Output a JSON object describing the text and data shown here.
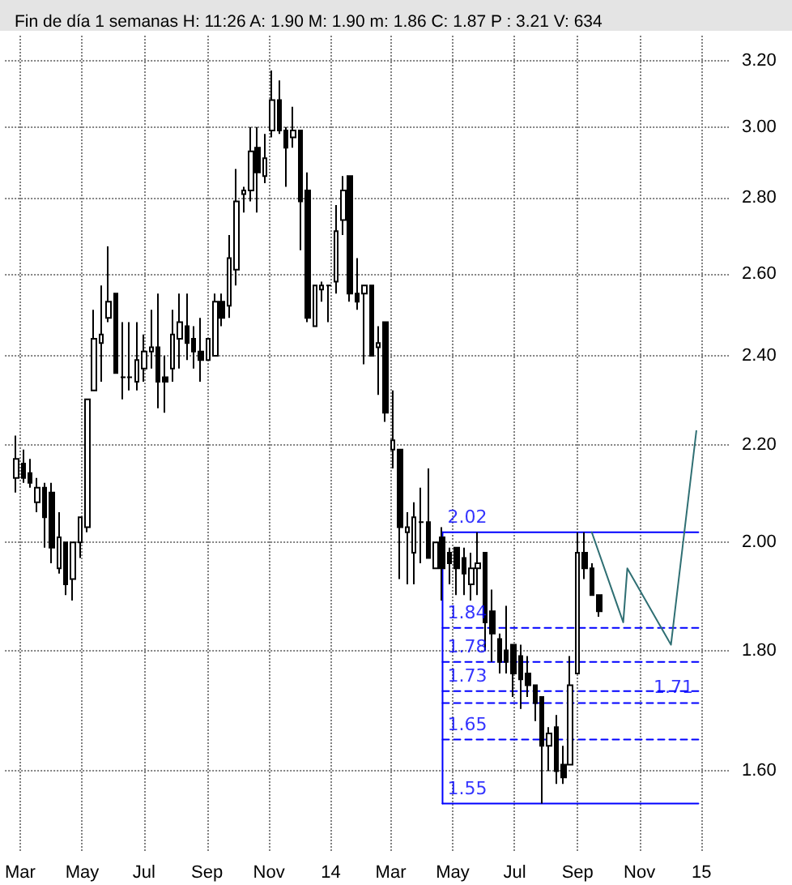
{
  "chart_data": {
    "type": "candlestick",
    "title": "Fin de día 1 semanas H: 11:26 A: 1.90 M: 1.90 m: 1.86 C: 1.87 P : 3.21 V: 634",
    "color": "#000000",
    "x": [
      "2013-02-25",
      "2013-03-04",
      "2013-03-11",
      "2013-03-18",
      "2013-03-25",
      "2013-04-01",
      "2013-04-08",
      "2013-04-15",
      "2013-04-22",
      "2013-04-29",
      "2013-05-06",
      "2013-05-13",
      "2013-05-20",
      "2013-05-27",
      "2013-06-03",
      "2013-06-10",
      "2013-06-17",
      "2013-06-24",
      "2013-07-01",
      "2013-07-08",
      "2013-07-15",
      "2013-07-22",
      "2013-07-29",
      "2013-08-05",
      "2013-08-12",
      "2013-08-19",
      "2013-08-26",
      "2013-09-02",
      "2013-09-09",
      "2013-09-16",
      "2013-09-23",
      "2013-09-30",
      "2013-10-07",
      "2013-10-14",
      "2013-10-21",
      "2013-10-28",
      "2013-11-04",
      "2013-11-11",
      "2013-11-18",
      "2013-11-25",
      "2013-12-02",
      "2013-12-09",
      "2013-12-16",
      "2013-12-23",
      "2013-12-30",
      "2014-01-06",
      "2014-01-13",
      "2014-01-20",
      "2014-01-27",
      "2014-02-03",
      "2014-02-10",
      "2014-02-17",
      "2014-02-24",
      "2014-03-03",
      "2014-03-10",
      "2014-03-17",
      "2014-03-24",
      "2014-03-31",
      "2014-04-07",
      "2014-04-14",
      "2014-04-21",
      "2014-04-28",
      "2014-05-05",
      "2014-05-12",
      "2014-05-19",
      "2014-05-26",
      "2014-06-02",
      "2014-06-09",
      "2014-06-16",
      "2014-06-23",
      "2014-06-30",
      "2014-07-07",
      "2014-07-14",
      "2014-07-21",
      "2014-07-28",
      "2014-08-04",
      "2014-08-11",
      "2014-08-18",
      "2014-08-25",
      "2014-09-01",
      "2014-09-08",
      "2014-09-15",
      "2014-09-22"
    ],
    "ohlc": [
      [
        2.13,
        2.22,
        2.1,
        2.17
      ],
      [
        2.16,
        2.19,
        2.12,
        2.13
      ],
      [
        2.14,
        2.17,
        2.11,
        2.12
      ],
      [
        2.08,
        2.13,
        2.06,
        2.11
      ],
      [
        2.11,
        2.12,
        1.99,
        2.05
      ],
      [
        2.1,
        2.12,
        1.96,
        1.99
      ],
      [
        1.95,
        2.06,
        1.94,
        2.01
      ],
      [
        2.0,
        2.0,
        1.9,
        1.92
      ],
      [
        1.93,
        2.0,
        1.89,
        2.0
      ],
      [
        2.0,
        2.05,
        1.97,
        2.05
      ],
      [
        2.03,
        2.3,
        2.02,
        2.3
      ],
      [
        2.32,
        2.51,
        2.32,
        2.44
      ],
      [
        2.43,
        2.57,
        2.34,
        2.45
      ],
      [
        2.49,
        2.67,
        2.48,
        2.53
      ],
      [
        2.55,
        2.55,
        2.36,
        2.36
      ],
      [
        2.35,
        2.48,
        2.3,
        2.35
      ],
      [
        2.35,
        2.48,
        2.32,
        2.35
      ],
      [
        2.34,
        2.48,
        2.32,
        2.39
      ],
      [
        2.37,
        2.45,
        2.34,
        2.41
      ],
      [
        2.41,
        2.51,
        2.37,
        2.42
      ],
      [
        2.42,
        2.55,
        2.28,
        2.34
      ],
      [
        2.35,
        2.4,
        2.27,
        2.34
      ],
      [
        2.37,
        2.51,
        2.34,
        2.45
      ],
      [
        2.44,
        2.55,
        2.37,
        2.48
      ],
      [
        2.47,
        2.55,
        2.39,
        2.43
      ],
      [
        2.44,
        2.47,
        2.37,
        2.41
      ],
      [
        2.41,
        2.49,
        2.34,
        2.39
      ],
      [
        2.39,
        2.44,
        2.39,
        2.44
      ],
      [
        2.4,
        2.55,
        2.4,
        2.53
      ],
      [
        2.53,
        2.55,
        2.47,
        2.49
      ],
      [
        2.52,
        2.7,
        2.49,
        2.64
      ],
      [
        2.61,
        2.88,
        2.57,
        2.79
      ],
      [
        2.81,
        2.83,
        2.76,
        2.82
      ],
      [
        2.82,
        3.0,
        2.79,
        2.93
      ],
      [
        2.94,
        3.0,
        2.76,
        2.87
      ],
      [
        2.86,
        2.98,
        2.84,
        2.91
      ],
      [
        2.99,
        3.17,
        2.97,
        3.08
      ],
      [
        3.08,
        3.14,
        2.98,
        2.99
      ],
      [
        2.99,
        3.0,
        2.83,
        2.94
      ],
      [
        2.97,
        3.06,
        2.94,
        2.99
      ],
      [
        2.99,
        2.99,
        2.66,
        2.79
      ],
      [
        2.82,
        2.87,
        2.48,
        2.49
      ],
      [
        2.47,
        2.57,
        2.47,
        2.57
      ],
      [
        2.56,
        2.58,
        2.53,
        2.57
      ],
      [
        2.57,
        2.57,
        2.48,
        2.57
      ],
      [
        2.58,
        2.78,
        2.55,
        2.71
      ],
      [
        2.74,
        2.86,
        2.7,
        2.82
      ],
      [
        2.86,
        2.86,
        2.53,
        2.55
      ],
      [
        2.55,
        2.64,
        2.51,
        2.53
      ],
      [
        2.55,
        2.57,
        2.38,
        2.57
      ],
      [
        2.57,
        2.57,
        2.4,
        2.4
      ],
      [
        2.42,
        2.47,
        2.31,
        2.43
      ],
      [
        2.48,
        2.48,
        2.25,
        2.27
      ],
      [
        2.19,
        2.32,
        2.15,
        2.21
      ],
      [
        2.19,
        2.19,
        1.93,
        2.03
      ],
      [
        2.02,
        2.06,
        1.92,
        2.03
      ],
      [
        1.98,
        2.08,
        1.92,
        2.05
      ],
      [
        2.04,
        2.11,
        1.96,
        2.04
      ],
      [
        2.04,
        2.15,
        1.97,
        1.97
      ],
      [
        1.95,
        2.0,
        1.95,
        2.0
      ],
      [
        2.01,
        2.03,
        1.89,
        1.95
      ],
      [
        1.98,
        1.99,
        1.92,
        1.96
      ],
      [
        1.99,
        1.99,
        1.9,
        1.95
      ],
      [
        1.97,
        1.99,
        1.9,
        1.94
      ],
      [
        1.92,
        1.98,
        1.89,
        1.95
      ],
      [
        1.95,
        2.02,
        1.9,
        1.96
      ],
      [
        1.98,
        1.98,
        1.8,
        1.85
      ],
      [
        1.87,
        1.91,
        1.78,
        1.83
      ],
      [
        1.82,
        1.83,
        1.76,
        1.78
      ],
      [
        1.8,
        1.88,
        1.76,
        1.78
      ],
      [
        1.81,
        1.81,
        1.72,
        1.76
      ],
      [
        1.79,
        1.81,
        1.7,
        1.75
      ],
      [
        1.76,
        1.79,
        1.72,
        1.74
      ],
      [
        1.74,
        1.74,
        1.68,
        1.71
      ],
      [
        1.72,
        1.72,
        1.55,
        1.64
      ],
      [
        1.64,
        1.67,
        1.6,
        1.66
      ],
      [
        1.67,
        1.69,
        1.58,
        1.6
      ],
      [
        1.61,
        1.64,
        1.58,
        1.59
      ],
      [
        1.61,
        1.79,
        1.61,
        1.74
      ],
      [
        1.76,
        2.02,
        1.76,
        1.98
      ],
      [
        1.98,
        2.02,
        1.93,
        1.95
      ],
      [
        1.95,
        1.96,
        1.9,
        1.9
      ],
      [
        1.9,
        1.9,
        1.86,
        1.87
      ]
    ],
    "series": [
      {
        "type": "line",
        "color": "#0000ff",
        "line_style": "solid",
        "x": [
          "2014-04-21",
          "2014-12-29"
        ],
        "values": [
          2.02,
          2.02
        ]
      },
      {
        "type": "line",
        "color": "#0000ff",
        "line_style": "dashed",
        "x": [
          "2014-04-21",
          "2014-12-29"
        ],
        "values": [
          1.84,
          1.84
        ]
      },
      {
        "type": "line",
        "color": "#0000ff",
        "line_style": "dashed",
        "x": [
          "2014-04-21",
          "2014-12-29"
        ],
        "values": [
          1.78,
          1.78
        ]
      },
      {
        "type": "line",
        "color": "#0000ff",
        "line_style": "dashed",
        "x": [
          "2014-04-21",
          "2014-12-29"
        ],
        "values": [
          1.73,
          1.73
        ]
      },
      {
        "type": "line",
        "color": "#0000ff",
        "line_style": "dashed",
        "x": [
          "2014-04-21",
          "2014-12-29"
        ],
        "values": [
          1.71,
          1.71
        ]
      },
      {
        "type": "line",
        "color": "#0000ff",
        "line_style": "dashed",
        "x": [
          "2014-04-21",
          "2014-12-29"
        ],
        "values": [
          1.65,
          1.65
        ]
      },
      {
        "type": "line",
        "color": "#0000ff",
        "line_style": "solid",
        "x": [
          "2014-04-21",
          "2014-12-29"
        ],
        "values": [
          1.55,
          1.55
        ]
      },
      {
        "type": "line",
        "color": "#0000ff",
        "line_style": "solid",
        "x": [
          "2014-04-21",
          "2014-04-21"
        ],
        "values": [
          2.02,
          1.55
        ]
      },
      {
        "type": "line",
        "color": "#2f6f73",
        "line_style": "solid",
        "x": [
          "2014-09-15",
          "2014-10-16",
          "2014-10-20",
          "2014-12-02",
          "2014-12-27"
        ],
        "values": [
          2.02,
          1.85,
          1.95,
          1.81,
          2.23
        ]
      }
    ],
    "annotations": [
      {
        "text": "2.02",
        "x": "2014-04-21",
        "y": 2.02
      },
      {
        "text": "1.84",
        "x": "2014-04-21",
        "y": 1.84
      },
      {
        "text": "1.78",
        "x": "2014-04-21",
        "y": 1.78
      },
      {
        "text": "1.73",
        "x": "2014-04-21",
        "y": 1.73
      },
      {
        "text": "1.71",
        "x": "2014-11-10",
        "y": 1.71
      },
      {
        "text": "1.65",
        "x": "2014-04-21",
        "y": 1.65
      },
      {
        "text": "1.55",
        "x": "2014-04-21",
        "y": 1.55
      }
    ],
    "xlim": [
      "2013-02-14",
      "2015-01-28"
    ],
    "xticks": [
      {
        "value": "2013-03-01",
        "label": "Mar"
      },
      {
        "value": "2013-05-01",
        "label": "May"
      },
      {
        "value": "2013-07-01",
        "label": "Jul"
      },
      {
        "value": "2013-09-01",
        "label": "Sep"
      },
      {
        "value": "2013-11-01",
        "label": "Nov"
      },
      {
        "value": "2014-01-01",
        "label": "14"
      },
      {
        "value": "2014-03-01",
        "label": "Mar"
      },
      {
        "value": "2014-05-01",
        "label": "May"
      },
      {
        "value": "2014-07-01",
        "label": "Jul"
      },
      {
        "value": "2014-09-01",
        "label": "Sep"
      },
      {
        "value": "2014-11-01",
        "label": "Nov"
      },
      {
        "value": "2015-01-01",
        "label": "15"
      }
    ],
    "ylim": [
      1.48,
      3.28
    ],
    "yticks": [
      {
        "value": 1.6,
        "label": "1.60"
      },
      {
        "value": 1.8,
        "label": "1.80"
      },
      {
        "value": 2.0,
        "label": "2.00"
      },
      {
        "value": 2.2,
        "label": "2.20"
      },
      {
        "value": 2.4,
        "label": "2.40"
      },
      {
        "value": 2.6,
        "label": "2.60"
      },
      {
        "value": 2.8,
        "label": "2.80"
      },
      {
        "value": 3.0,
        "label": "3.00"
      },
      {
        "value": 3.2,
        "label": "3.20"
      }
    ],
    "log": "y",
    "grid": true,
    "marker": "none"
  }
}
